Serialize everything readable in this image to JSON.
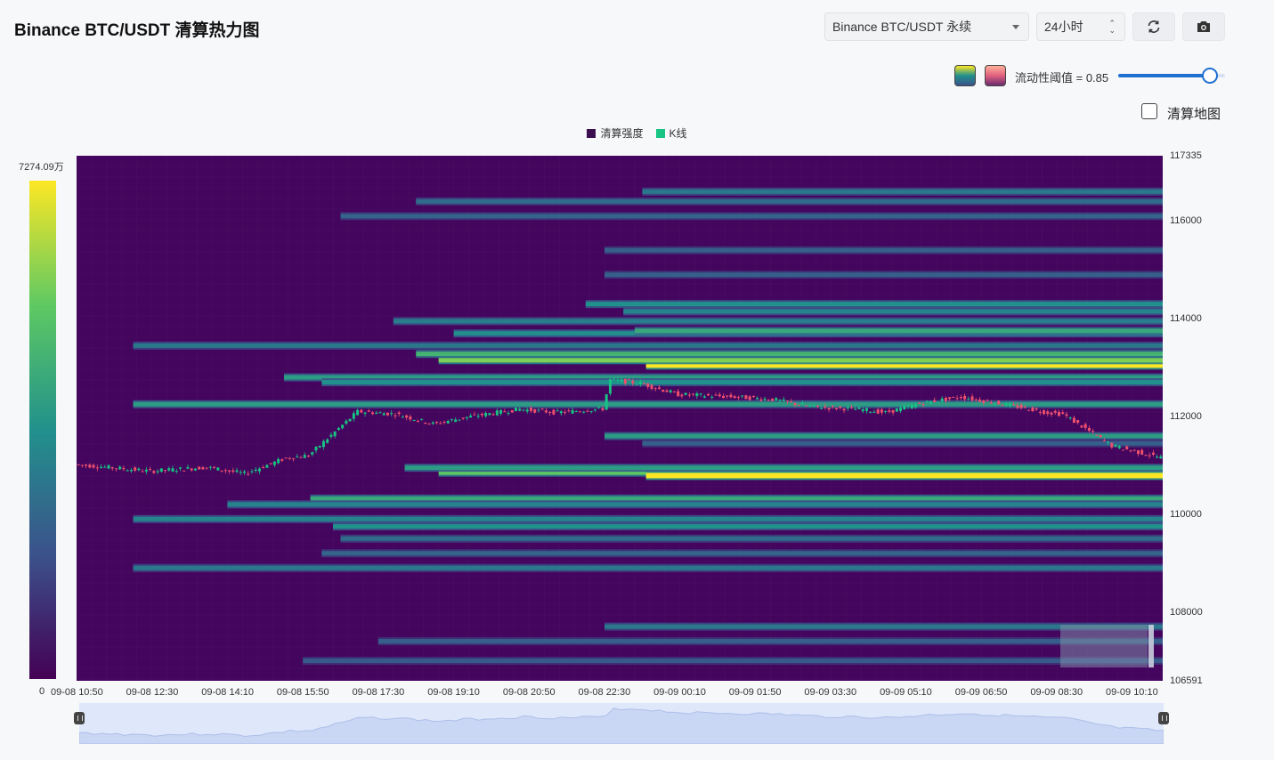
{
  "title": "Binance BTC/USDT 清算热力图",
  "controls": {
    "exchange_select": "Binance BTC/USDT 永续",
    "period_select": "24小时",
    "threshold_label": "流动性阈值 = 0.85",
    "threshold_value": 0.85,
    "liq_map_label": "清算地图",
    "liq_map_checked": false,
    "icons": [
      "refresh-icon",
      "camera-icon",
      "viridis-palette-icon",
      "pink-palette-icon"
    ]
  },
  "legend": [
    {
      "label": "清算强度",
      "color": "#3b0f4f"
    },
    {
      "label": "K线",
      "color": "#17c484"
    }
  ],
  "colorbar": {
    "max_label": "7274.09万",
    "min_label": "0",
    "colors": [
      "#440154",
      "#3b528b",
      "#21918c",
      "#5ec962",
      "#fde725"
    ]
  },
  "chart_data": {
    "type": "heatmap",
    "y_min": 106591,
    "y_max": 117335,
    "y_ticks": [
      "117335",
      "116000",
      "114000",
      "112000",
      "110000",
      "108000",
      "106591"
    ],
    "x_ticks": [
      "09-08 10:50",
      "09-08 12:30",
      "09-08 14:10",
      "09-08 15:50",
      "09-08 17:30",
      "09-08 19:10",
      "09-08 20:50",
      "09-08 22:30",
      "09-09 00:10",
      "09-09 01:50",
      "09-09 03:30",
      "09-09 05:10",
      "09-09 06:50",
      "09-09 08:30",
      "09-09 10:10"
    ],
    "n_time": 288,
    "price_path": [
      [
        0,
        111020
      ],
      [
        20,
        110880
      ],
      [
        35,
        110960
      ],
      [
        45,
        110830
      ],
      [
        56,
        111150
      ],
      [
        62,
        111200
      ],
      [
        75,
        112100
      ],
      [
        85,
        112050
      ],
      [
        95,
        111850
      ],
      [
        105,
        112000
      ],
      [
        118,
        112150
      ],
      [
        128,
        112080
      ],
      [
        140,
        112160
      ],
      [
        142,
        112750
      ],
      [
        150,
        112680
      ],
      [
        160,
        112450
      ],
      [
        175,
        112400
      ],
      [
        185,
        112350
      ],
      [
        195,
        112200
      ],
      [
        208,
        112150
      ],
      [
        215,
        112080
      ],
      [
        225,
        112280
      ],
      [
        235,
        112400
      ],
      [
        250,
        112200
      ],
      [
        258,
        112080
      ],
      [
        262,
        112050
      ],
      [
        275,
        111400
      ],
      [
        288,
        111160
      ]
    ],
    "bands": [
      {
        "price": 113050,
        "start": 151,
        "intensity": 1.0
      },
      {
        "price": 113150,
        "start": 96,
        "intensity": 0.8
      },
      {
        "price": 113280,
        "start": 90,
        "intensity": 0.65
      },
      {
        "price": 110850,
        "start": 96,
        "intensity": 0.75
      },
      {
        "price": 110790,
        "start": 151,
        "intensity": 1.0
      },
      {
        "price": 110950,
        "start": 87,
        "intensity": 0.55
      },
      {
        "price": 110320,
        "start": 62,
        "intensity": 0.6
      },
      {
        "price": 110200,
        "start": 40,
        "intensity": 0.45
      },
      {
        "price": 109900,
        "start": 15,
        "intensity": 0.45
      },
      {
        "price": 109750,
        "start": 68,
        "intensity": 0.5
      },
      {
        "price": 109500,
        "start": 70,
        "intensity": 0.35
      },
      {
        "price": 109200,
        "start": 65,
        "intensity": 0.32
      },
      {
        "price": 108900,
        "start": 15,
        "intensity": 0.4
      },
      {
        "price": 112250,
        "start": 15,
        "intensity": 0.55
      },
      {
        "price": 112800,
        "start": 55,
        "intensity": 0.55
      },
      {
        "price": 112700,
        "start": 65,
        "intensity": 0.5
      },
      {
        "price": 113700,
        "start": 100,
        "intensity": 0.48
      },
      {
        "price": 113950,
        "start": 84,
        "intensity": 0.42
      },
      {
        "price": 114300,
        "start": 135,
        "intensity": 0.5
      },
      {
        "price": 114150,
        "start": 145,
        "intensity": 0.45
      },
      {
        "price": 113750,
        "start": 148,
        "intensity": 0.6
      },
      {
        "price": 113450,
        "start": 15,
        "intensity": 0.4
      },
      {
        "price": 116600,
        "start": 150,
        "intensity": 0.4
      },
      {
        "price": 116400,
        "start": 90,
        "intensity": 0.35
      },
      {
        "price": 116100,
        "start": 70,
        "intensity": 0.32
      },
      {
        "price": 115400,
        "start": 140,
        "intensity": 0.3
      },
      {
        "price": 114900,
        "start": 140,
        "intensity": 0.3
      },
      {
        "price": 111600,
        "start": 140,
        "intensity": 0.55
      },
      {
        "price": 111450,
        "start": 150,
        "intensity": 0.3
      },
      {
        "price": 107700,
        "start": 140,
        "intensity": 0.4
      },
      {
        "price": 107400,
        "start": 80,
        "intensity": 0.3
      },
      {
        "price": 107000,
        "start": 60,
        "intensity": 0.28
      }
    ]
  }
}
